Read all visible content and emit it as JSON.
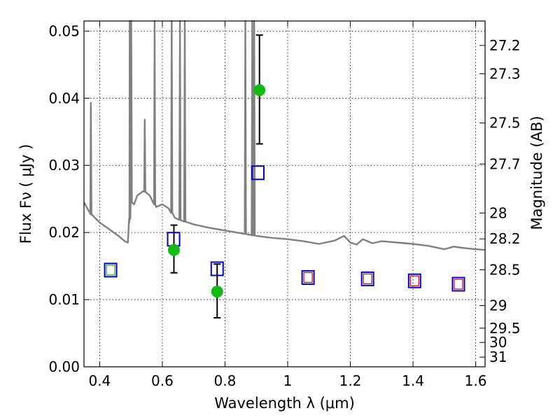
{
  "chart_data": {
    "type": "scatter",
    "xlabel": "Wavelength  λ (μm)",
    "ylabel": "Flux  Fν  ( μJy )",
    "y2label": "Magnitude (AB)",
    "xlim": [
      0.35,
      1.63
    ],
    "ylim": [
      0.0,
      0.0515
    ],
    "grid": true,
    "x_ticks": [
      0.4,
      0.6,
      0.8,
      1.0,
      1.2,
      1.4,
      1.6
    ],
    "x_tick_labels": [
      "0.4",
      "0.6",
      "0.8",
      "1",
      "1.2",
      "1.4",
      "1.6"
    ],
    "y_ticks": [
      0.0,
      0.01,
      0.02,
      0.03,
      0.04,
      0.05
    ],
    "y_tick_labels": [
      "0.00",
      "0.01",
      "0.02",
      "0.03",
      "0.04",
      "0.05"
    ],
    "mag_ticks": [
      {
        "mag": 27.2,
        "label": "27.2"
      },
      {
        "mag": 27.3,
        "label": "27.3"
      },
      {
        "mag": 27.5,
        "label": "27.5"
      },
      {
        "mag": 27.7,
        "label": "27.7"
      },
      {
        "mag": 28.0,
        "label": "28"
      },
      {
        "mag": 28.2,
        "label": "28.2"
      },
      {
        "mag": 28.5,
        "label": "28.5"
      },
      {
        "mag": 29.0,
        "label": "29"
      },
      {
        "mag": 29.5,
        "label": "29.5"
      },
      {
        "mag": 30.0,
        "label": "30"
      },
      {
        "mag": 31.0,
        "label": "31"
      }
    ],
    "series": [
      {
        "kind": "spectrum-line",
        "color": "#808080",
        "continuum": [
          [
            0.35,
            0.0245
          ],
          [
            0.37,
            0.0228
          ],
          [
            0.4,
            0.0215
          ],
          [
            0.43,
            0.0205
          ],
          [
            0.46,
            0.0195
          ],
          [
            0.48,
            0.0187
          ],
          [
            0.49,
            0.0185
          ],
          [
            0.495,
            0.0215
          ],
          [
            0.5,
            0.0245
          ],
          [
            0.51,
            0.0242
          ],
          [
            0.52,
            0.0255
          ],
          [
            0.54,
            0.0262
          ],
          [
            0.56,
            0.0255
          ],
          [
            0.58,
            0.0238
          ],
          [
            0.6,
            0.0242
          ],
          [
            0.62,
            0.0236
          ],
          [
            0.64,
            0.0222
          ],
          [
            0.66,
            0.0218
          ],
          [
            0.7,
            0.0212
          ],
          [
            0.75,
            0.0207
          ],
          [
            0.8,
            0.0203
          ],
          [
            0.85,
            0.0199
          ],
          [
            0.9,
            0.0195
          ],
          [
            0.95,
            0.0192
          ],
          [
            1.0,
            0.019
          ],
          [
            1.05,
            0.0187
          ],
          [
            1.1,
            0.0183
          ],
          [
            1.15,
            0.0188
          ],
          [
            1.18,
            0.0195
          ],
          [
            1.2,
            0.0185
          ],
          [
            1.22,
            0.0182
          ],
          [
            1.24,
            0.019
          ],
          [
            1.27,
            0.0184
          ],
          [
            1.3,
            0.0187
          ],
          [
            1.35,
            0.0185
          ],
          [
            1.4,
            0.0183
          ],
          [
            1.45,
            0.018
          ],
          [
            1.5,
            0.0175
          ],
          [
            1.53,
            0.0179
          ],
          [
            1.56,
            0.0177
          ],
          [
            1.6,
            0.0175
          ],
          [
            1.63,
            0.0174
          ]
        ],
        "emission_lines": [
          {
            "x": 0.372,
            "peak": 0.0393
          },
          {
            "x": 0.4959,
            "peak": 0.0515
          },
          {
            "x": 0.5007,
            "peak": 0.0515
          },
          {
            "x": 0.544,
            "peak": 0.0368
          },
          {
            "x": 0.5755,
            "peak": 0.0515
          },
          {
            "x": 0.63,
            "peak": 0.0515
          },
          {
            "x": 0.6563,
            "peak": 0.0515
          },
          {
            "x": 0.6716,
            "peak": 0.0515
          },
          {
            "x": 0.865,
            "peak": 0.0515
          },
          {
            "x": 0.887,
            "peak": 0.0515
          },
          {
            "x": 0.893,
            "peak": 0.0515
          }
        ]
      },
      {
        "kind": "blue-squares",
        "color": "#0000cc",
        "points": [
          {
            "x": 0.435,
            "y": 0.0144
          },
          {
            "x": 0.636,
            "y": 0.019
          },
          {
            "x": 0.775,
            "y": 0.0146
          },
          {
            "x": 0.905,
            "y": 0.0289
          },
          {
            "x": 1.065,
            "y": 0.0133
          },
          {
            "x": 1.255,
            "y": 0.0131
          },
          {
            "x": 1.405,
            "y": 0.0128
          },
          {
            "x": 1.545,
            "y": 0.0123
          }
        ]
      },
      {
        "kind": "inner-squares",
        "color": "#cc0000",
        "points": [
          {
            "x": 0.435,
            "y": 0.0144,
            "color": "#22aa22"
          },
          {
            "x": 1.065,
            "y": 0.0133
          },
          {
            "x": 1.255,
            "y": 0.0131
          },
          {
            "x": 1.405,
            "y": 0.0128
          },
          {
            "x": 1.545,
            "y": 0.0123
          }
        ]
      },
      {
        "kind": "green-circles-with-errors",
        "color": "#11bb11",
        "points": [
          {
            "x": 0.637,
            "y": 0.0174,
            "yerr_low": 0.0034,
            "yerr_high": 0.0037
          },
          {
            "x": 0.775,
            "y": 0.0112,
            "yerr_low": 0.0039,
            "yerr_high": 0.0041
          },
          {
            "x": 0.91,
            "y": 0.0412,
            "yerr_low": 0.008,
            "yerr_high": 0.0082
          }
        ]
      }
    ]
  }
}
